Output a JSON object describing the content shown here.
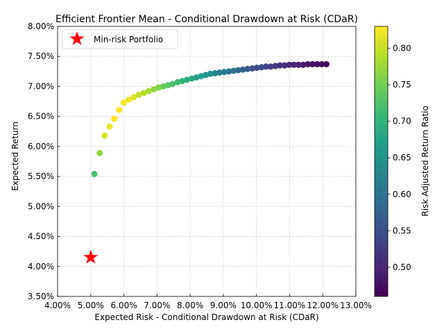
{
  "chart_data": {
    "type": "scatter",
    "title": "Efficient Frontier Mean - Conditional Drawdown at Risk (CDaR)",
    "xlabel": "Expected Risk - Conditional Drawdown at Risk (CDaR)",
    "ylabel": "Expected Return",
    "xlim": [
      0.04,
      0.13
    ],
    "ylim": [
      0.035,
      0.08
    ],
    "x_ticks": [
      0.04,
      0.05,
      0.06,
      0.07,
      0.08,
      0.09,
      0.1,
      0.11,
      0.12,
      0.13
    ],
    "x_tick_labels": [
      "4.00%",
      "5.00%",
      "6.00%",
      "7.00%",
      "8.00%",
      "9.00%",
      "10.00%",
      "11.00%",
      "12.00%",
      "13.00%"
    ],
    "y_ticks": [
      0.035,
      0.04,
      0.045,
      0.05,
      0.055,
      0.06,
      0.065,
      0.07,
      0.075,
      0.08
    ],
    "y_tick_labels": [
      "3.50%",
      "4.00%",
      "4.50%",
      "5.00%",
      "5.50%",
      "6.00%",
      "6.50%",
      "7.00%",
      "7.50%",
      "8.00%"
    ],
    "grid": true,
    "legend": {
      "position": "top-left",
      "entries": [
        "Min-risk Portfolio"
      ]
    },
    "colorbar": {
      "label": "Risk Adjusted Return Ratio",
      "colormap": "viridis",
      "range": [
        0.46,
        0.83
      ],
      "ticks": [
        0.5,
        0.55,
        0.6,
        0.65,
        0.7,
        0.75,
        0.8
      ],
      "tick_labels": [
        "0.50",
        "0.55",
        "0.60",
        "0.65",
        "0.70",
        "0.75",
        "0.80"
      ]
    },
    "min_risk_portfolio": {
      "x": 0.05,
      "y": 0.0415,
      "color": "#ff0000",
      "marker": "star"
    },
    "points": [
      {
        "x": 0.0511,
        "y": 0.0554,
        "c": 0.72
      },
      {
        "x": 0.0527,
        "y": 0.0589,
        "c": 0.77
      },
      {
        "x": 0.0542,
        "y": 0.0618,
        "c": 0.81
      },
      {
        "x": 0.0557,
        "y": 0.0633,
        "c": 0.82
      },
      {
        "x": 0.0571,
        "y": 0.0646,
        "c": 0.83
      },
      {
        "x": 0.0586,
        "y": 0.0661,
        "c": 0.83
      },
      {
        "x": 0.06,
        "y": 0.0673,
        "c": 0.83
      },
      {
        "x": 0.0615,
        "y": 0.0678,
        "c": 0.82
      },
      {
        "x": 0.063,
        "y": 0.0682,
        "c": 0.81
      },
      {
        "x": 0.0645,
        "y": 0.0686,
        "c": 0.8
      },
      {
        "x": 0.066,
        "y": 0.0689,
        "c": 0.79
      },
      {
        "x": 0.0675,
        "y": 0.0692,
        "c": 0.78
      },
      {
        "x": 0.069,
        "y": 0.0695,
        "c": 0.77
      },
      {
        "x": 0.0705,
        "y": 0.0698,
        "c": 0.76
      },
      {
        "x": 0.0719,
        "y": 0.07,
        "c": 0.745
      },
      {
        "x": 0.0733,
        "y": 0.0702,
        "c": 0.735
      },
      {
        "x": 0.0747,
        "y": 0.0704,
        "c": 0.725
      },
      {
        "x": 0.0762,
        "y": 0.0707,
        "c": 0.715
      },
      {
        "x": 0.0776,
        "y": 0.0709,
        "c": 0.705
      },
      {
        "x": 0.079,
        "y": 0.0711,
        "c": 0.695
      },
      {
        "x": 0.0805,
        "y": 0.0713,
        "c": 0.685
      },
      {
        "x": 0.0819,
        "y": 0.0715,
        "c": 0.675
      },
      {
        "x": 0.0833,
        "y": 0.0717,
        "c": 0.665
      },
      {
        "x": 0.0847,
        "y": 0.0719,
        "c": 0.655
      },
      {
        "x": 0.0861,
        "y": 0.0721,
        "c": 0.645
      },
      {
        "x": 0.0875,
        "y": 0.0722,
        "c": 0.635
      },
      {
        "x": 0.0889,
        "y": 0.0723,
        "c": 0.625
      },
      {
        "x": 0.0903,
        "y": 0.0724,
        "c": 0.615
      },
      {
        "x": 0.0917,
        "y": 0.0725,
        "c": 0.605
      },
      {
        "x": 0.0931,
        "y": 0.0726,
        "c": 0.595
      },
      {
        "x": 0.0945,
        "y": 0.0727,
        "c": 0.585
      },
      {
        "x": 0.0959,
        "y": 0.0728,
        "c": 0.575
      },
      {
        "x": 0.0973,
        "y": 0.0729,
        "c": 0.565
      },
      {
        "x": 0.0987,
        "y": 0.073,
        "c": 0.555
      },
      {
        "x": 0.1001,
        "y": 0.0731,
        "c": 0.548
      },
      {
        "x": 0.1015,
        "y": 0.0732,
        "c": 0.541
      },
      {
        "x": 0.1029,
        "y": 0.0733,
        "c": 0.534
      },
      {
        "x": 0.1043,
        "y": 0.0733,
        "c": 0.527
      },
      {
        "x": 0.1057,
        "y": 0.0734,
        "c": 0.521
      },
      {
        "x": 0.1071,
        "y": 0.0735,
        "c": 0.515
      },
      {
        "x": 0.1085,
        "y": 0.0735,
        "c": 0.509
      },
      {
        "x": 0.1099,
        "y": 0.0736,
        "c": 0.503
      },
      {
        "x": 0.1113,
        "y": 0.0736,
        "c": 0.498
      },
      {
        "x": 0.1127,
        "y": 0.0736,
        "c": 0.493
      },
      {
        "x": 0.1141,
        "y": 0.0736,
        "c": 0.488
      },
      {
        "x": 0.1155,
        "y": 0.0737,
        "c": 0.483
      },
      {
        "x": 0.1169,
        "y": 0.0737,
        "c": 0.478
      },
      {
        "x": 0.1183,
        "y": 0.0737,
        "c": 0.473
      },
      {
        "x": 0.1197,
        "y": 0.0737,
        "c": 0.468
      },
      {
        "x": 0.1211,
        "y": 0.0737,
        "c": 0.464
      }
    ]
  }
}
